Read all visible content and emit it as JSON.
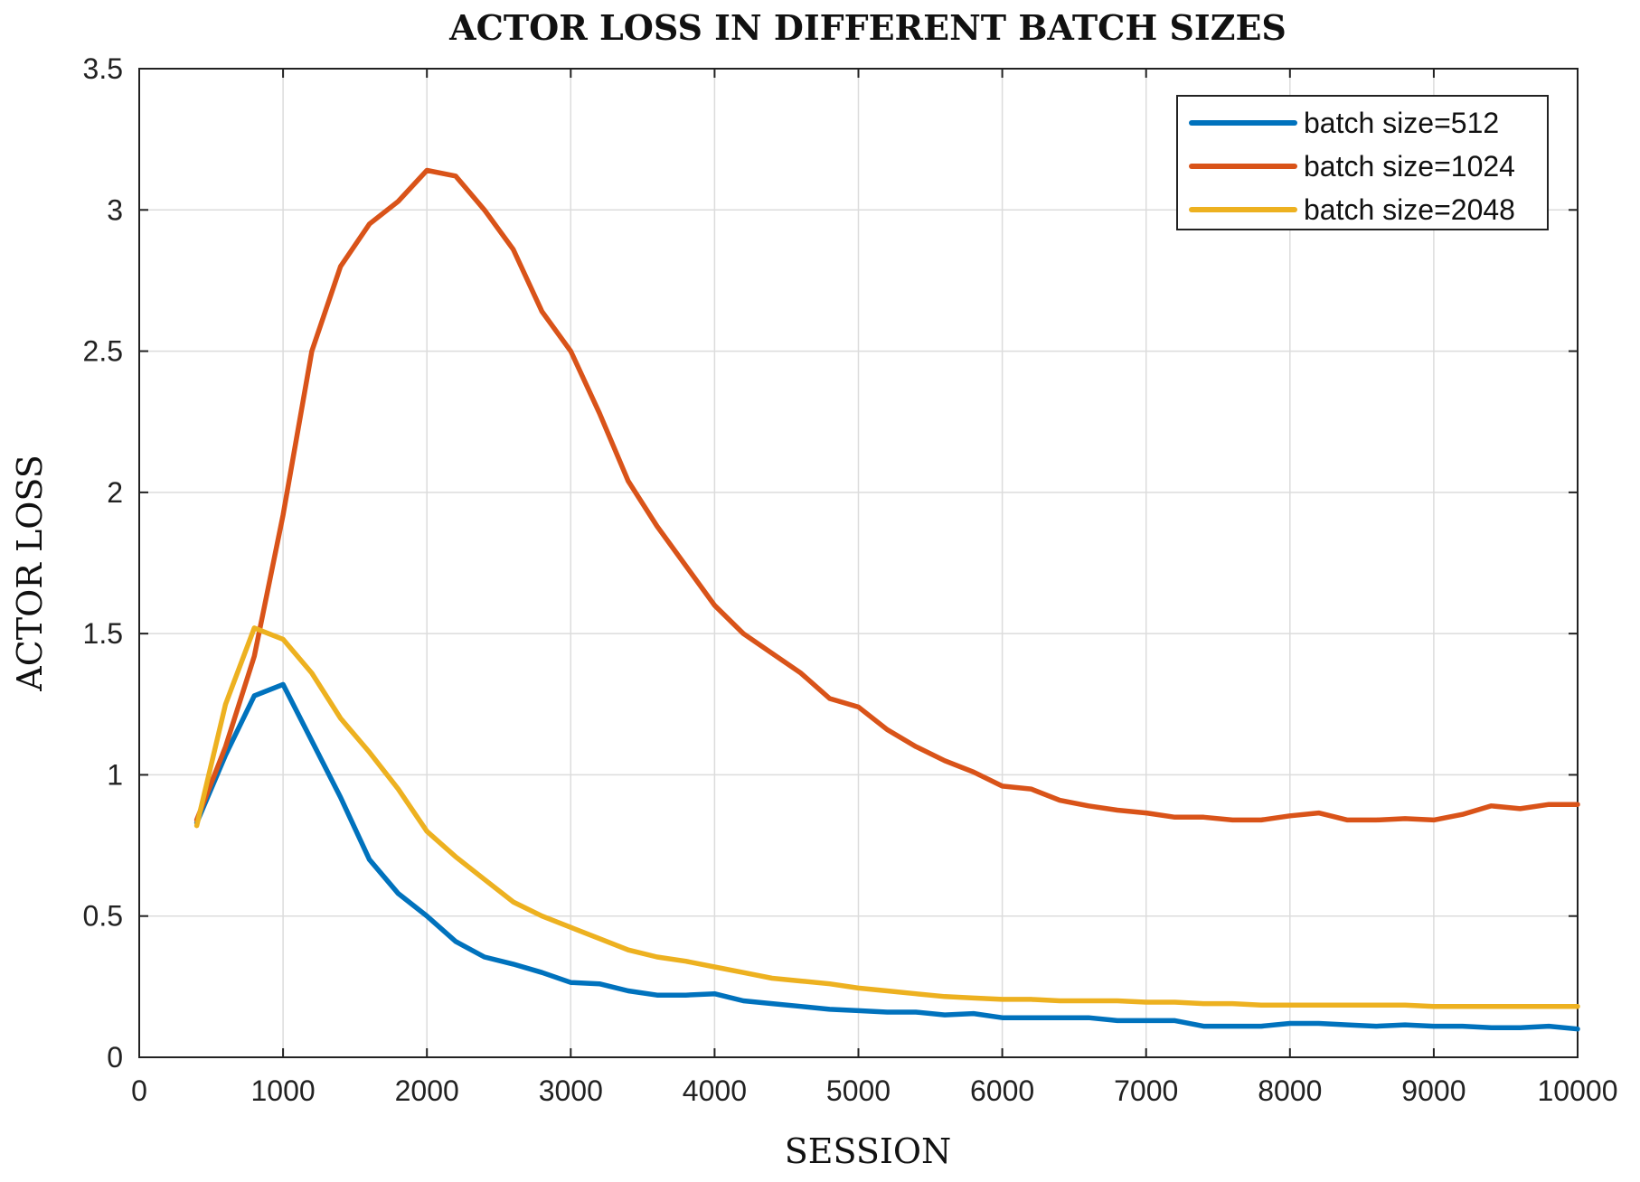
{
  "chart_data": {
    "type": "line",
    "title": "ACTOR LOSS IN DIFFERENT BATCH SIZES",
    "xlabel": "SESSION",
    "ylabel": "ACTOR LOSS",
    "xlim": [
      0,
      10000
    ],
    "ylim": [
      0,
      3.5
    ],
    "xticks": [
      0,
      1000,
      2000,
      3000,
      4000,
      5000,
      6000,
      7000,
      8000,
      9000,
      10000
    ],
    "xtick_labels": [
      "0",
      "1000",
      "2000",
      "3000",
      "4000",
      "5000",
      "6000",
      "7000",
      "8000",
      "9000",
      "10000"
    ],
    "yticks": [
      0,
      0.5,
      1,
      1.5,
      2,
      2.5,
      3,
      3.5
    ],
    "ytick_labels": [
      "0",
      "0.5",
      "1",
      "1.5",
      "2",
      "2.5",
      "3",
      "3.5"
    ],
    "grid": true,
    "legend_position": "top-right",
    "x": [
      400,
      600,
      800,
      1000,
      1200,
      1400,
      1600,
      1800,
      2000,
      2200,
      2400,
      2600,
      2800,
      3000,
      3200,
      3400,
      3600,
      3800,
      4000,
      4200,
      4400,
      4600,
      4800,
      5000,
      5200,
      5400,
      5600,
      5800,
      6000,
      6200,
      6400,
      6600,
      6800,
      7000,
      7200,
      7400,
      7600,
      7800,
      8000,
      8200,
      8400,
      8600,
      8800,
      9000,
      9200,
      9400,
      9600,
      9800,
      10000
    ],
    "series": [
      {
        "name": "batch size=512",
        "color": "#0072BD",
        "values": [
          0.83,
          1.07,
          1.28,
          1.32,
          1.12,
          0.92,
          0.7,
          0.58,
          0.5,
          0.41,
          0.355,
          0.33,
          0.3,
          0.265,
          0.26,
          0.235,
          0.22,
          0.22,
          0.225,
          0.2,
          0.19,
          0.18,
          0.17,
          0.165,
          0.16,
          0.16,
          0.15,
          0.155,
          0.14,
          0.14,
          0.14,
          0.14,
          0.13,
          0.13,
          0.13,
          0.11,
          0.11,
          0.11,
          0.12,
          0.12,
          0.115,
          0.11,
          0.115,
          0.11,
          0.11,
          0.105,
          0.105,
          0.11,
          0.1
        ]
      },
      {
        "name": "batch size=1024",
        "color": "#D95319",
        "values": [
          0.84,
          1.1,
          1.42,
          1.92,
          2.5,
          2.8,
          2.95,
          3.03,
          3.14,
          3.12,
          3.0,
          2.86,
          2.64,
          2.5,
          2.28,
          2.04,
          1.88,
          1.74,
          1.6,
          1.5,
          1.43,
          1.36,
          1.27,
          1.24,
          1.16,
          1.1,
          1.05,
          1.01,
          0.96,
          0.95,
          0.91,
          0.89,
          0.875,
          0.865,
          0.85,
          0.85,
          0.84,
          0.84,
          0.855,
          0.865,
          0.84,
          0.84,
          0.845,
          0.84,
          0.86,
          0.89,
          0.88,
          0.895,
          0.895
        ]
      },
      {
        "name": "batch size=2048",
        "color": "#EDB120",
        "values": [
          0.82,
          1.25,
          1.52,
          1.48,
          1.36,
          1.2,
          1.08,
          0.95,
          0.8,
          0.71,
          0.63,
          0.55,
          0.5,
          0.46,
          0.42,
          0.38,
          0.355,
          0.34,
          0.32,
          0.3,
          0.28,
          0.27,
          0.26,
          0.245,
          0.235,
          0.225,
          0.215,
          0.21,
          0.205,
          0.205,
          0.2,
          0.2,
          0.2,
          0.195,
          0.195,
          0.19,
          0.19,
          0.185,
          0.185,
          0.185,
          0.185,
          0.185,
          0.185,
          0.18,
          0.18,
          0.18,
          0.18,
          0.18,
          0.18
        ]
      }
    ]
  }
}
